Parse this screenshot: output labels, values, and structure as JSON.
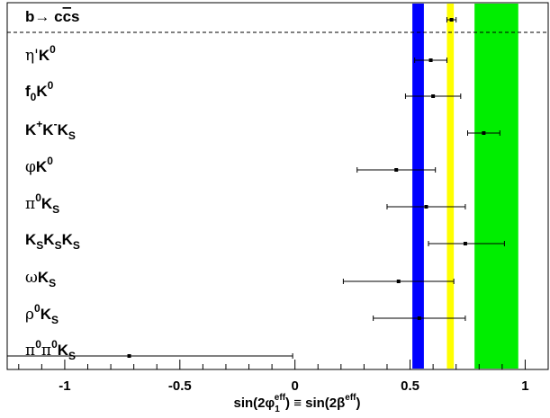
{
  "chart_data": {
    "type": "scatter",
    "title": "",
    "xlabel": "sin(2φ₁ᵉᶠᶠ) ≡ sin(2βᵉᶠᶠ)",
    "xlabel_parts": {
      "a": "sin(2φ",
      "a_sub": "1",
      "a_sup": "eff",
      "mid": ") ≡ sin(2β",
      "b_sup": "eff",
      "end": ")"
    },
    "xlim": [
      -1.25,
      1.1
    ],
    "xticks": [
      {
        "value": -1,
        "label": "-1"
      },
      {
        "value": -0.5,
        "label": "-0.5"
      },
      {
        "value": 0,
        "label": "0"
      },
      {
        "value": 0.5,
        "label": "0.5"
      },
      {
        "value": 1,
        "label": "1"
      }
    ],
    "grid": false,
    "reference": {
      "label": "b→ cc̅s",
      "value": 0.68,
      "error": 0.02
    },
    "bands": [
      {
        "name": "band-blue",
        "from": 0.51,
        "to": 0.56,
        "color": "#0000ff"
      },
      {
        "name": "band-yellow",
        "from": 0.66,
        "to": 0.69,
        "color": "#ffff00"
      },
      {
        "name": "band-green",
        "from": 0.78,
        "to": 0.97,
        "color": "#00ee00"
      }
    ],
    "points": [
      {
        "label": "η'K⁰",
        "value": 0.59,
        "low": 0.52,
        "high": 0.66
      },
      {
        "label": "f₀K⁰",
        "value": 0.6,
        "low": 0.48,
        "high": 0.72
      },
      {
        "label": "K⁺K⁻Kₛ",
        "value": 0.82,
        "low": 0.75,
        "high": 0.89
      },
      {
        "label": "φK⁰",
        "value": 0.44,
        "low": 0.27,
        "high": 0.61
      },
      {
        "label": "π⁰Kₛ",
        "value": 0.57,
        "low": 0.4,
        "high": 0.74
      },
      {
        "label": "KₛKₛKₛ",
        "value": 0.74,
        "low": 0.58,
        "high": 0.91
      },
      {
        "label": "ωKₛ",
        "value": 0.45,
        "low": 0.21,
        "high": 0.69
      },
      {
        "label": "ρ⁰Kₛ",
        "value": 0.54,
        "low": 0.34,
        "high": 0.74
      },
      {
        "label": "π⁰π⁰Kₛ",
        "value": -0.72,
        "low": -1.25,
        "high": -0.01
      }
    ]
  }
}
